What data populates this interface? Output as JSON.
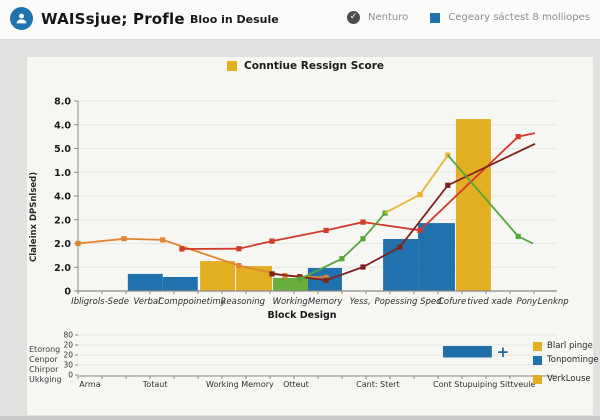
{
  "header": {
    "app_title": "WAISsjue; Profle",
    "subtitle": "Bloo in Desule",
    "status_label": "Nenturo",
    "category_label": "Cegeary sáctest 8 molliopes",
    "status_check_glyph": "✓"
  },
  "colors": {
    "blue": "#1f72ad",
    "yellow": "#e2ae22",
    "green_bar": "#69ad3c",
    "red_line": "#d23a2c",
    "maroon_line": "#7e2420",
    "orange_line": "#e0852e",
    "green_line": "#55a63c",
    "yellow_line": "#e8b62e",
    "grid": "#e6e6e2",
    "axis": "#8a8a87",
    "page_bg": "#dfe2de",
    "card_bg": "#f6f6f3"
  },
  "main_chart": {
    "legend_label": "Conntiue  Ressign Score",
    "ylabel": "Claleinx DPSnlsed)",
    "xlabel": "Block Design"
  },
  "chart_data": [
    {
      "type": "bar+line",
      "title": "",
      "legend": [
        "Conntiue Ressign Score"
      ],
      "ylabel": "Claleinx DPSnlsed)",
      "xlabel": "Block Design",
      "ylim": [
        0,
        8
      ],
      "grid": "horizontal",
      "legend_position": "top-center",
      "ytick_labels": [
        "8.0",
        "4.0",
        "5.0",
        "1.0",
        "4.0",
        "2.0",
        "2.0",
        "2.0",
        "0"
      ],
      "xtick_labels": [
        "Ibligrols-Sede",
        "Verbal",
        "Comppoinetimy",
        "Reasoning",
        "Working",
        "Memory",
        "Yess,",
        "Popessing Sped",
        "Cofure",
        "tived",
        "xade",
        "Pony",
        "Lenknp"
      ],
      "xtick_f": [
        0.046,
        0.144,
        0.238,
        0.344,
        0.443,
        0.516,
        0.589,
        0.689,
        0.781,
        0.835,
        0.885,
        0.937,
        0.992
      ],
      "bars": [
        {
          "f": 0.104,
          "w": 0.073,
          "h": 0.72,
          "color": "#1f72ad"
        },
        {
          "f": 0.177,
          "w": 0.073,
          "h": 0.59,
          "color": "#1f72ad"
        },
        {
          "f": 0.255,
          "w": 0.073,
          "h": 1.26,
          "color": "#e2ae22"
        },
        {
          "f": 0.33,
          "w": 0.075,
          "h": 1.05,
          "color": "#e2ae22"
        },
        {
          "f": 0.407,
          "w": 0.073,
          "h": 0.55,
          "color": "#69ad3c"
        },
        {
          "f": 0.48,
          "w": 0.071,
          "h": 0.97,
          "color": "#1f72ad"
        },
        {
          "f": 0.637,
          "w": 0.073,
          "h": 2.19,
          "color": "#1f72ad"
        },
        {
          "f": 0.71,
          "w": 0.077,
          "h": 2.86,
          "color": "#1f72ad"
        },
        {
          "f": 0.789,
          "w": 0.073,
          "h": 7.24,
          "color": "#e2ae22"
        }
      ],
      "lines": [
        {
          "name": "orange-series",
          "color": "#e0852e",
          "skip_markers": [],
          "points": [
            [
              0.0,
              2.0
            ],
            [
              0.096,
              2.2
            ],
            [
              0.177,
              2.15
            ],
            [
              0.336,
              1.07
            ],
            [
              0.432,
              0.65
            ],
            [
              0.518,
              0.57
            ]
          ]
        },
        {
          "name": "red-series",
          "color": "#d23a2c",
          "skip_markers": [
            7
          ],
          "points": [
            [
              0.217,
              1.77
            ],
            [
              0.336,
              1.78
            ],
            [
              0.405,
              2.1
            ],
            [
              0.518,
              2.55
            ],
            [
              0.595,
              2.9
            ],
            [
              0.714,
              2.55
            ],
            [
              0.919,
              6.5
            ],
            [
              0.954,
              6.65
            ]
          ]
        },
        {
          "name": "maroon-series",
          "color": "#7e2420",
          "skip_markers": [
            6
          ],
          "points": [
            [
              0.405,
              0.72
            ],
            [
              0.463,
              0.6
            ],
            [
              0.518,
              0.45
            ],
            [
              0.595,
              1.01
            ],
            [
              0.672,
              1.85
            ],
            [
              0.772,
              4.45
            ],
            [
              0.954,
              6.2
            ]
          ]
        },
        {
          "name": "green-rise-series",
          "color": "#55a63c",
          "skip_markers": [],
          "points": [
            [
              0.463,
              0.5
            ],
            [
              0.551,
              1.36
            ],
            [
              0.595,
              2.2
            ],
            [
              0.641,
              3.28
            ]
          ]
        },
        {
          "name": "yellow-series",
          "color": "#e8b62e",
          "skip_markers": [
            0
          ],
          "points": [
            [
              0.641,
              3.28
            ],
            [
              0.714,
              4.06
            ],
            [
              0.772,
              5.72
            ]
          ]
        },
        {
          "name": "green-fall-series",
          "color": "#55a63c",
          "skip_markers": [
            0,
            2
          ],
          "points": [
            [
              0.772,
              5.72
            ],
            [
              0.919,
              2.3
            ],
            [
              0.95,
              2.0
            ]
          ]
        }
      ]
    },
    {
      "type": "bar",
      "orientation": "horizontal",
      "ytick_labels": [
        "80",
        "20",
        "20",
        "30",
        "0"
      ],
      "xtick_labels": [
        "Arma",
        "Totaut",
        "Working Memory",
        "Otteut",
        "Cant:",
        "Stert",
        "Cont Stupuiping Sittveule"
      ],
      "xtick_f": [
        0.025,
        0.161,
        0.338,
        0.455,
        0.603,
        0.651,
        0.848
      ],
      "bar": {
        "f0": 0.762,
        "f1": 0.864,
        "color": "#1f6fa8"
      },
      "plus_label": "+",
      "legend": [
        {
          "label": "Blarl pinge",
          "color": "#e2ae22"
        },
        {
          "label": "Tonpominge",
          "color": "#1f72ad"
        },
        {
          "label": "VerkLouse",
          "color": "#e2ae22"
        }
      ],
      "left_text": [
        "Etorong",
        "Cenpor",
        "Chirpor",
        "Ukkging"
      ]
    }
  ]
}
